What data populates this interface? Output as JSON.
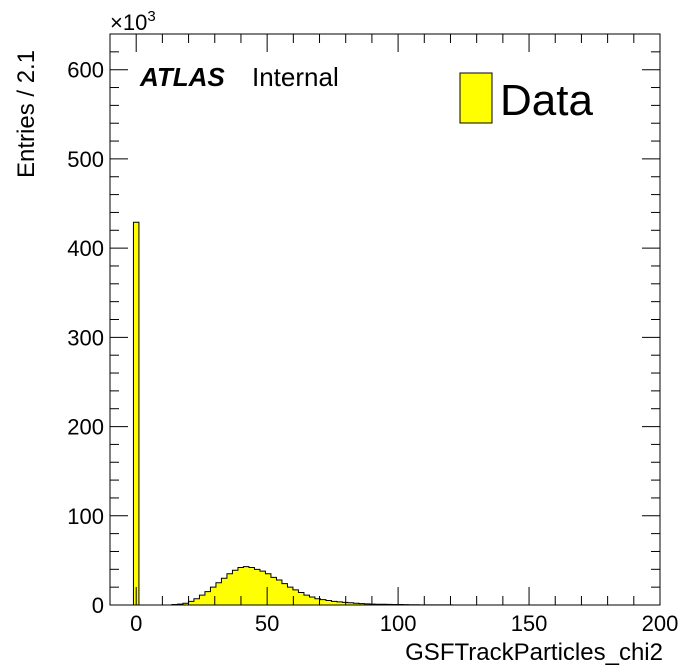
{
  "chart_data": {
    "type": "bar",
    "xlabel": "GSFTrackParticles_chi2",
    "ylabel": "Entries / 2.1",
    "xlim": [
      -10,
      200
    ],
    "ylim": [
      0,
      640
    ],
    "y_multiplier": "×10",
    "y_multiplier_exp": "3",
    "xticks": [
      0,
      50,
      100,
      150,
      200
    ],
    "yticks": [
      0,
      100,
      200,
      300,
      400,
      500,
      600
    ],
    "bin_width": 2.1,
    "bin_start": -1.05,
    "values": [
      429,
      0,
      0,
      0,
      0,
      0,
      0,
      0.5,
      1,
      2,
      4,
      7,
      11,
      15,
      20,
      25,
      30,
      35,
      39,
      42,
      43,
      42,
      40,
      38,
      35,
      31,
      28,
      24,
      20,
      17,
      14,
      11,
      9,
      7,
      6,
      5,
      4,
      3.5,
      3,
      2.5,
      2,
      1.5,
      1.2,
      1,
      0.9,
      0.8,
      0.7,
      0.6,
      0.5,
      0.4,
      0.3,
      0.3,
      0.2,
      0.2,
      0.1,
      0.1,
      0.1,
      0.1
    ],
    "fill_color": "#ffff00",
    "legend": {
      "entries": [
        "Data"
      ],
      "placement": "top-right"
    },
    "annotations": {
      "experiment": "ATLAS",
      "status": "Internal"
    }
  }
}
